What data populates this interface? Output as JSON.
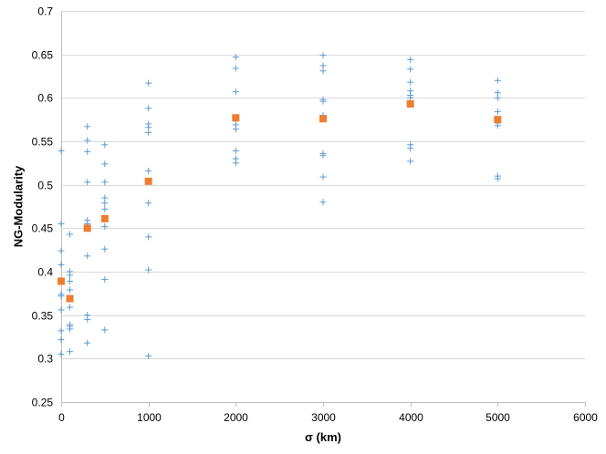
{
  "chart_data": {
    "type": "scatter",
    "title": "",
    "xlabel": "σ (km)",
    "ylabel": "NG-Modularity",
    "xlim": [
      0,
      6000
    ],
    "ylim": [
      0.25,
      0.7
    ],
    "x_ticks": [
      0,
      1000,
      2000,
      3000,
      4000,
      5000,
      6000
    ],
    "x_tick_labels": [
      "0",
      "1000",
      "2000",
      "3000",
      "4000",
      "5000",
      "6000"
    ],
    "y_ticks": [
      0.25,
      0.3,
      0.35,
      0.4,
      0.45,
      0.5,
      0.55,
      0.6,
      0.65,
      0.7
    ],
    "y_tick_labels": [
      "0.25",
      "0.3",
      "0.35",
      "0.4",
      "0.45",
      "0.5",
      "0.55",
      "0.6",
      "0.65",
      "0.7"
    ],
    "grid": "horizontal",
    "legend": "none",
    "series": [
      {
        "marker": "plus",
        "color": "#5b9bd5",
        "points": [
          {
            "x": 0,
            "y": 0.539
          },
          {
            "x": 0,
            "y": 0.455
          },
          {
            "x": 0,
            "y": 0.424
          },
          {
            "x": 0,
            "y": 0.408
          },
          {
            "x": 0,
            "y": 0.39
          },
          {
            "x": 0,
            "y": 0.374
          },
          {
            "x": 0,
            "y": 0.372
          },
          {
            "x": 0,
            "y": 0.356
          },
          {
            "x": 0,
            "y": 0.332
          },
          {
            "x": 0,
            "y": 0.322
          },
          {
            "x": 0,
            "y": 0.305
          },
          {
            "x": 100,
            "y": 0.443
          },
          {
            "x": 100,
            "y": 0.4
          },
          {
            "x": 100,
            "y": 0.396
          },
          {
            "x": 100,
            "y": 0.389
          },
          {
            "x": 100,
            "y": 0.379
          },
          {
            "x": 100,
            "y": 0.359
          },
          {
            "x": 100,
            "y": 0.339
          },
          {
            "x": 100,
            "y": 0.337
          },
          {
            "x": 100,
            "y": 0.334
          },
          {
            "x": 100,
            "y": 0.308
          },
          {
            "x": 300,
            "y": 0.567
          },
          {
            "x": 300,
            "y": 0.551
          },
          {
            "x": 300,
            "y": 0.538
          },
          {
            "x": 300,
            "y": 0.503
          },
          {
            "x": 300,
            "y": 0.459
          },
          {
            "x": 300,
            "y": 0.455
          },
          {
            "x": 300,
            "y": 0.418
          },
          {
            "x": 300,
            "y": 0.35
          },
          {
            "x": 300,
            "y": 0.345
          },
          {
            "x": 300,
            "y": 0.318
          },
          {
            "x": 500,
            "y": 0.546
          },
          {
            "x": 500,
            "y": 0.524
          },
          {
            "x": 500,
            "y": 0.503
          },
          {
            "x": 500,
            "y": 0.485
          },
          {
            "x": 500,
            "y": 0.479
          },
          {
            "x": 500,
            "y": 0.472
          },
          {
            "x": 500,
            "y": 0.452
          },
          {
            "x": 500,
            "y": 0.426
          },
          {
            "x": 500,
            "y": 0.391
          },
          {
            "x": 500,
            "y": 0.333
          },
          {
            "x": 1000,
            "y": 0.617
          },
          {
            "x": 1000,
            "y": 0.588
          },
          {
            "x": 1000,
            "y": 0.57
          },
          {
            "x": 1000,
            "y": 0.566
          },
          {
            "x": 1000,
            "y": 0.56
          },
          {
            "x": 1000,
            "y": 0.516
          },
          {
            "x": 1000,
            "y": 0.479
          },
          {
            "x": 1000,
            "y": 0.44
          },
          {
            "x": 1000,
            "y": 0.402
          },
          {
            "x": 1000,
            "y": 0.303
          },
          {
            "x": 2000,
            "y": 0.647
          },
          {
            "x": 2000,
            "y": 0.634
          },
          {
            "x": 2000,
            "y": 0.607
          },
          {
            "x": 2000,
            "y": 0.575
          },
          {
            "x": 2000,
            "y": 0.569
          },
          {
            "x": 2000,
            "y": 0.564
          },
          {
            "x": 2000,
            "y": 0.539
          },
          {
            "x": 2000,
            "y": 0.53
          },
          {
            "x": 2000,
            "y": 0.525
          },
          {
            "x": 3000,
            "y": 0.649
          },
          {
            "x": 3000,
            "y": 0.637
          },
          {
            "x": 3000,
            "y": 0.631
          },
          {
            "x": 3000,
            "y": 0.598
          },
          {
            "x": 3000,
            "y": 0.596
          },
          {
            "x": 3000,
            "y": 0.58
          },
          {
            "x": 3000,
            "y": 0.536
          },
          {
            "x": 3000,
            "y": 0.534
          },
          {
            "x": 3000,
            "y": 0.509
          },
          {
            "x": 3000,
            "y": 0.48
          },
          {
            "x": 4000,
            "y": 0.644
          },
          {
            "x": 4000,
            "y": 0.633
          },
          {
            "x": 4000,
            "y": 0.618
          },
          {
            "x": 4000,
            "y": 0.608
          },
          {
            "x": 4000,
            "y": 0.603
          },
          {
            "x": 4000,
            "y": 0.6
          },
          {
            "x": 4000,
            "y": 0.546
          },
          {
            "x": 4000,
            "y": 0.542
          },
          {
            "x": 4000,
            "y": 0.527
          },
          {
            "x": 5000,
            "y": 0.62
          },
          {
            "x": 5000,
            "y": 0.606
          },
          {
            "x": 5000,
            "y": 0.6
          },
          {
            "x": 5000,
            "y": 0.584
          },
          {
            "x": 5000,
            "y": 0.571
          },
          {
            "x": 5000,
            "y": 0.568
          },
          {
            "x": 5000,
            "y": 0.51
          },
          {
            "x": 5000,
            "y": 0.507
          }
        ]
      },
      {
        "marker": "square",
        "color": "#ed7d31",
        "points": [
          {
            "x": 0,
            "y": 0.389
          },
          {
            "x": 100,
            "y": 0.369
          },
          {
            "x": 300,
            "y": 0.45
          },
          {
            "x": 500,
            "y": 0.461
          },
          {
            "x": 1000,
            "y": 0.504
          },
          {
            "x": 2000,
            "y": 0.577
          },
          {
            "x": 3000,
            "y": 0.576
          },
          {
            "x": 4000,
            "y": 0.593
          },
          {
            "x": 5000,
            "y": 0.575
          }
        ]
      }
    ]
  }
}
